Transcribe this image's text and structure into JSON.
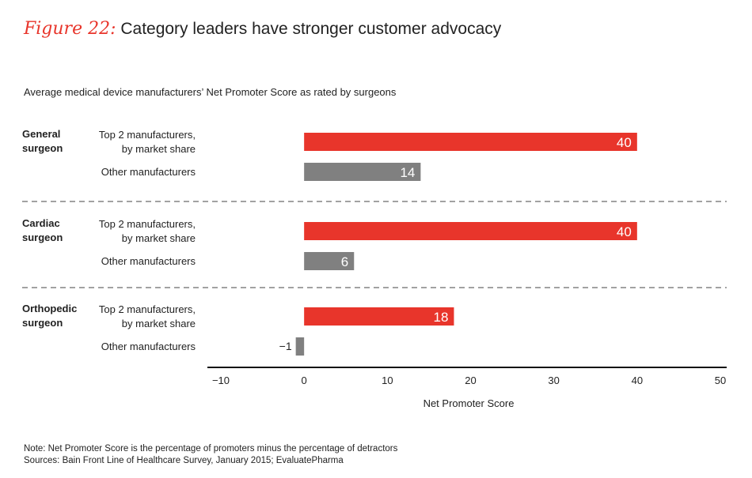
{
  "title": {
    "label": "Figure 22:",
    "text": "Category leaders have stronger customer advocacy"
  },
  "chart_data": {
    "type": "bar",
    "orientation": "horizontal",
    "subtitle": "Average medical device manufacturers’ Net Promoter Score as rated by surgeons",
    "xlabel": "Net Promoter Score",
    "xlim": [
      -10,
      50
    ],
    "xticks": [
      "−10",
      "0",
      "10",
      "20",
      "30",
      "40",
      "50"
    ],
    "xtick_values": [
      -10,
      0,
      10,
      20,
      30,
      40,
      50
    ],
    "colors": {
      "top2": "#e8352b",
      "other": "#808080"
    },
    "groups": [
      {
        "name_lines": [
          "General",
          "surgeon"
        ],
        "bars": [
          {
            "label_lines": [
              "Top 2 manufacturers,",
              "by market share"
            ],
            "value": 40,
            "value_text": "40",
            "series": "top2"
          },
          {
            "label_lines": [
              "Other manufacturers"
            ],
            "value": 14,
            "value_text": "14",
            "series": "other"
          }
        ]
      },
      {
        "name_lines": [
          "Cardiac",
          "surgeon"
        ],
        "bars": [
          {
            "label_lines": [
              "Top 2 manufacturers,",
              "by market share"
            ],
            "value": 40,
            "value_text": "40",
            "series": "top2"
          },
          {
            "label_lines": [
              "Other  manufacturers"
            ],
            "value": 6,
            "value_text": "6",
            "series": "other"
          }
        ]
      },
      {
        "name_lines": [
          "Orthopedic",
          "surgeon"
        ],
        "bars": [
          {
            "label_lines": [
              "Top 2 manufacturers,",
              "by market share"
            ],
            "value": 18,
            "value_text": "18",
            "series": "top2"
          },
          {
            "label_lines": [
              "Other manufacturers"
            ],
            "value": -1,
            "value_text": "−1",
            "series": "other"
          }
        ]
      }
    ]
  },
  "notes": {
    "note": "Note: Net Promoter Score is the percentage of promoters minus the percentage of detractors",
    "sources": "Sources: Bain Front Line of Healthcare Survey, January 2015; EvaluatePharma"
  }
}
